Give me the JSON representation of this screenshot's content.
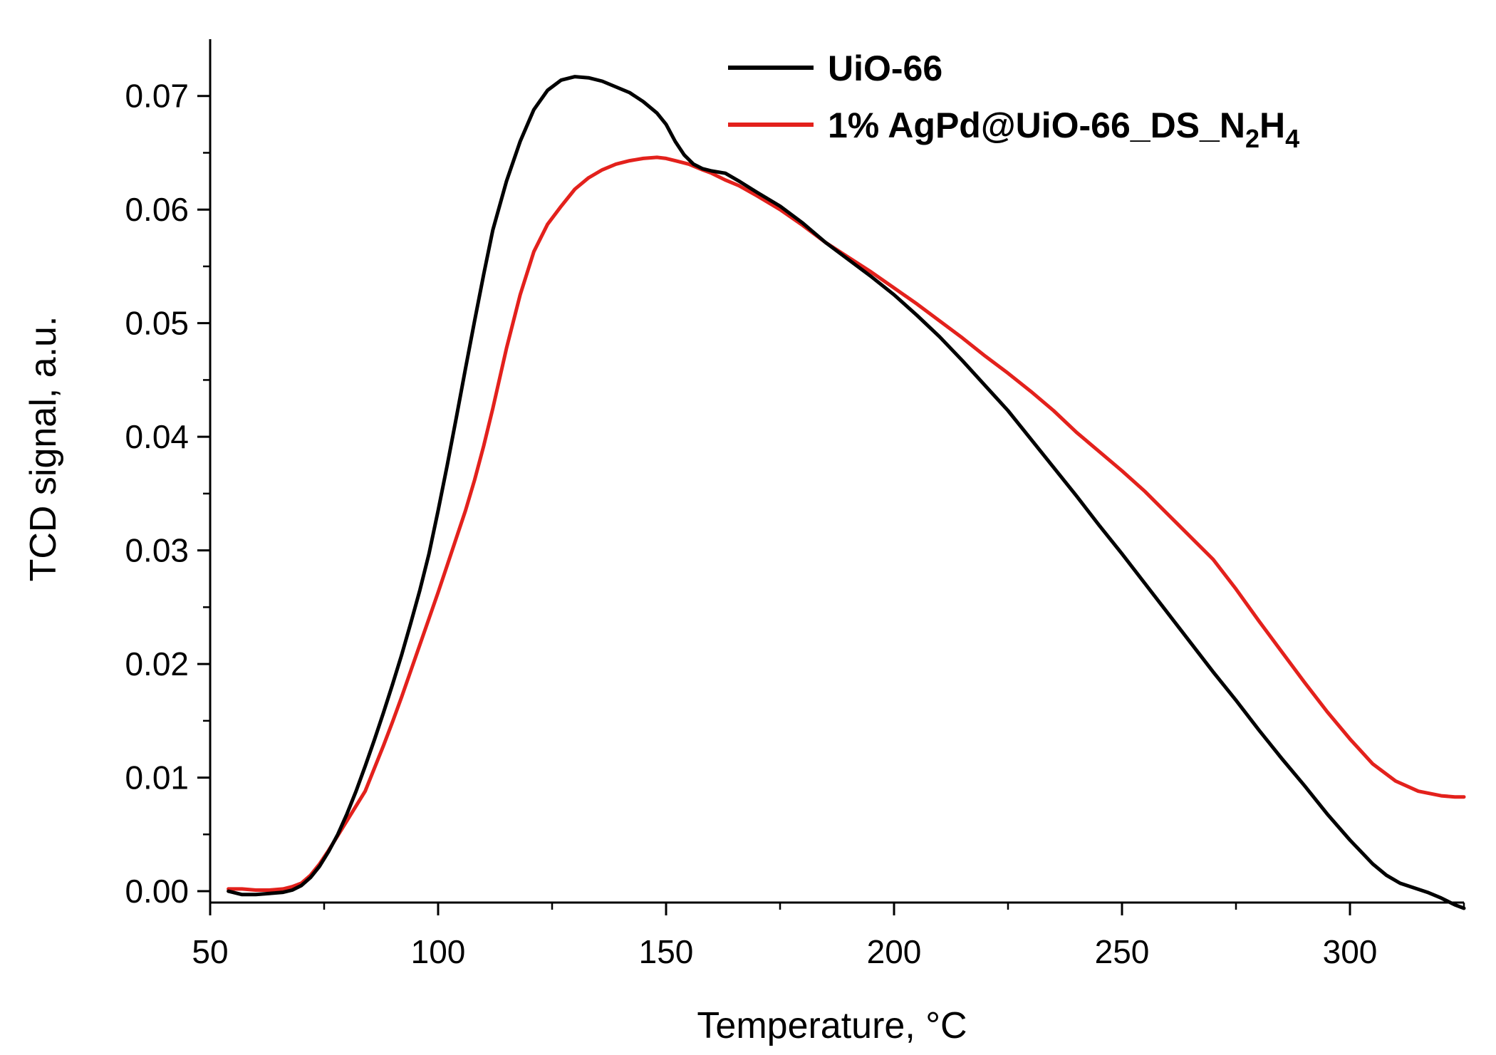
{
  "chart_data": {
    "type": "line",
    "title": "",
    "xlabel": "Temperature, °C",
    "ylabel": "TCD signal, a.u.",
    "xlim": [
      50,
      325
    ],
    "ylim": [
      -0.001,
      0.075
    ],
    "xticks": [
      {
        "value": 50,
        "label": "50"
      },
      {
        "value": 100,
        "label": "100"
      },
      {
        "value": 150,
        "label": "150"
      },
      {
        "value": 200,
        "label": "200"
      },
      {
        "value": 250,
        "label": "250"
      },
      {
        "value": 300,
        "label": "300"
      }
    ],
    "yticks": [
      {
        "value": 0.0,
        "label": "0.00"
      },
      {
        "value": 0.01,
        "label": "0.01"
      },
      {
        "value": 0.02,
        "label": "0.02"
      },
      {
        "value": 0.03,
        "label": "0.03"
      },
      {
        "value": 0.04,
        "label": "0.04"
      },
      {
        "value": 0.05,
        "label": "0.05"
      },
      {
        "value": 0.06,
        "label": "0.06"
      },
      {
        "value": 0.07,
        "label": "0.07"
      }
    ],
    "grid": false,
    "legend": {
      "position": "top-right",
      "entries": [
        {
          "name": "UiO-66"
        },
        {
          "base": "1% AgPd@UiO-66_DS_N",
          "sub1": "2",
          "mid": "H",
          "sub2": "4"
        }
      ]
    },
    "series": [
      {
        "name": "UiO-66",
        "color": "#000000",
        "x": [
          54,
          57,
          60,
          63,
          66,
          68,
          70,
          72,
          74,
          76,
          78,
          80,
          82,
          84,
          86,
          88,
          90,
          92,
          94,
          96,
          98,
          100,
          102,
          104,
          106,
          108,
          110,
          112,
          115,
          118,
          121,
          124,
          127,
          130,
          133,
          136,
          139,
          142,
          145,
          148,
          150,
          152,
          154,
          156,
          158,
          160,
          163,
          166,
          170,
          175,
          180,
          185,
          190,
          195,
          200,
          205,
          210,
          215,
          220,
          225,
          230,
          235,
          240,
          245,
          250,
          255,
          260,
          265,
          270,
          275,
          280,
          285,
          290,
          295,
          300,
          305,
          308,
          311,
          314,
          317,
          320,
          323,
          325
        ],
        "y": [
          0.0,
          -0.0003,
          -0.0003,
          -0.0002,
          -0.0001,
          0.0001,
          0.0005,
          0.0012,
          0.0022,
          0.0035,
          0.005,
          0.0068,
          0.0088,
          0.011,
          0.0133,
          0.0157,
          0.0182,
          0.0208,
          0.0236,
          0.0265,
          0.0297,
          0.0335,
          0.0375,
          0.0417,
          0.046,
          0.0502,
          0.0543,
          0.0582,
          0.0625,
          0.066,
          0.0688,
          0.0705,
          0.0714,
          0.0717,
          0.0716,
          0.0713,
          0.0708,
          0.0703,
          0.0695,
          0.0685,
          0.0675,
          0.066,
          0.0648,
          0.064,
          0.0636,
          0.0634,
          0.0632,
          0.0625,
          0.0615,
          0.0603,
          0.0588,
          0.0571,
          0.0556,
          0.0541,
          0.0525,
          0.0507,
          0.0488,
          0.0467,
          0.0445,
          0.0423,
          0.0398,
          0.0373,
          0.0348,
          0.0322,
          0.0297,
          0.0271,
          0.0245,
          0.0219,
          0.0193,
          0.0168,
          0.0142,
          0.0117,
          0.0093,
          0.0068,
          0.0045,
          0.0024,
          0.0014,
          0.0007,
          0.0003,
          -0.0001,
          -0.0006,
          -0.0012,
          -0.0015
        ]
      },
      {
        "name": "1% AgPd@UiO-66_DS_N2H4",
        "color": "#e3211c",
        "x": [
          54,
          57,
          60,
          63,
          66,
          68,
          70,
          72,
          74,
          76,
          78,
          80,
          82,
          84,
          86,
          88,
          90,
          92,
          94,
          96,
          98,
          100,
          102,
          104,
          106,
          108,
          110,
          112,
          115,
          118,
          121,
          124,
          127,
          130,
          133,
          136,
          139,
          142,
          145,
          148,
          150,
          152,
          155,
          158,
          160,
          163,
          166,
          170,
          175,
          180,
          185,
          190,
          195,
          200,
          205,
          210,
          215,
          220,
          225,
          230,
          235,
          240,
          245,
          250,
          255,
          260,
          265,
          270,
          275,
          280,
          285,
          290,
          295,
          300,
          305,
          310,
          315,
          320,
          323,
          325
        ],
        "y": [
          0.0002,
          0.0002,
          0.0001,
          0.0001,
          0.0002,
          0.0004,
          0.0007,
          0.0014,
          0.0024,
          0.0036,
          0.0049,
          0.0062,
          0.0075,
          0.0088,
          0.0108,
          0.0128,
          0.0149,
          0.0171,
          0.0194,
          0.0217,
          0.024,
          0.0263,
          0.0287,
          0.0311,
          0.0335,
          0.0362,
          0.0392,
          0.0425,
          0.0478,
          0.0525,
          0.0563,
          0.0587,
          0.0603,
          0.0618,
          0.0628,
          0.0635,
          0.064,
          0.0643,
          0.0645,
          0.0646,
          0.0645,
          0.0643,
          0.064,
          0.0635,
          0.0632,
          0.0626,
          0.0621,
          0.0612,
          0.06,
          0.0586,
          0.0571,
          0.0558,
          0.0545,
          0.0531,
          0.0517,
          0.0502,
          0.0487,
          0.0471,
          0.0456,
          0.044,
          0.0423,
          0.0404,
          0.0387,
          0.037,
          0.0352,
          0.0332,
          0.0312,
          0.0292,
          0.0266,
          0.0238,
          0.0211,
          0.0184,
          0.0158,
          0.0134,
          0.0112,
          0.0097,
          0.0088,
          0.0084,
          0.0083,
          0.0083
        ]
      }
    ]
  }
}
